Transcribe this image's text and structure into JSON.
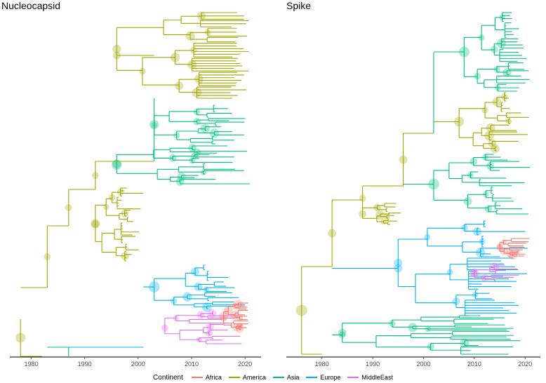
{
  "chart_data": [
    {
      "type": "phylogenetic-tree",
      "title": "Nucleocapsid",
      "xlim": [
        1976,
        2023
      ],
      "xticks": [
        1980,
        1990,
        2000,
        2010,
        2020
      ],
      "clades": [
        {
          "continent": "America",
          "root_year": 1996,
          "tip_years": [
            2017,
            2021
          ]
        },
        {
          "continent": "Asia",
          "root_year": 2003,
          "tip_years": [
            2010,
            2021
          ]
        },
        {
          "continent": "Asia",
          "root_year": 1996,
          "tip_years": [
            2009,
            2021
          ]
        },
        {
          "continent": "America",
          "root_year": 1992,
          "tip_years": [
            1994,
            2001
          ]
        },
        {
          "continent": "Europe",
          "root_year": 2003,
          "tip_years": [
            2010,
            2021
          ]
        },
        {
          "continent": "MiddleEast",
          "root_year": 2005,
          "tip_years": [
            2013,
            2020
          ]
        },
        {
          "continent": "Africa",
          "root_year": 2016,
          "tip_years": [
            2018,
            2021
          ]
        }
      ]
    },
    {
      "type": "phylogenetic-tree",
      "title": "Spike",
      "xlim": [
        1973,
        2023
      ],
      "xticks": [
        1980,
        1990,
        2000,
        2010,
        2020
      ],
      "clades": [
        {
          "continent": "Asia",
          "root_year": 2008,
          "tip_years": [
            2015,
            2021
          ]
        },
        {
          "continent": "America",
          "root_year": 2007,
          "tip_years": [
            2010,
            2021
          ]
        },
        {
          "continent": "Asia",
          "root_year": 2002,
          "tip_years": [
            2008,
            2021
          ]
        },
        {
          "continent": "America",
          "root_year": 1988,
          "tip_years": [
            1990,
            1996
          ]
        },
        {
          "continent": "Europe",
          "root_year": 1995,
          "tip_years": [
            2005,
            2021
          ]
        },
        {
          "continent": "Africa",
          "root_year": 2015,
          "tip_years": [
            2018,
            2021
          ]
        },
        {
          "continent": "MiddleEast",
          "root_year": 2010,
          "tip_years": [
            2012,
            2019
          ]
        },
        {
          "continent": "Asia",
          "root_year": 1984,
          "tip_years": [
            2008,
            2021
          ]
        }
      ]
    }
  ],
  "panels": {
    "left_title": "Nucleocapsid",
    "right_title": "Spike"
  },
  "legend": {
    "title": "Continent",
    "items": [
      {
        "label": "Africa",
        "color": "#f8766d"
      },
      {
        "label": "America",
        "color": "#a3a500"
      },
      {
        "label": "Asia",
        "color": "#00bf7d"
      },
      {
        "label": "Europe",
        "color": "#00b0f6"
      },
      {
        "label": "MiddleEast",
        "color": "#e76bf3"
      }
    ]
  }
}
